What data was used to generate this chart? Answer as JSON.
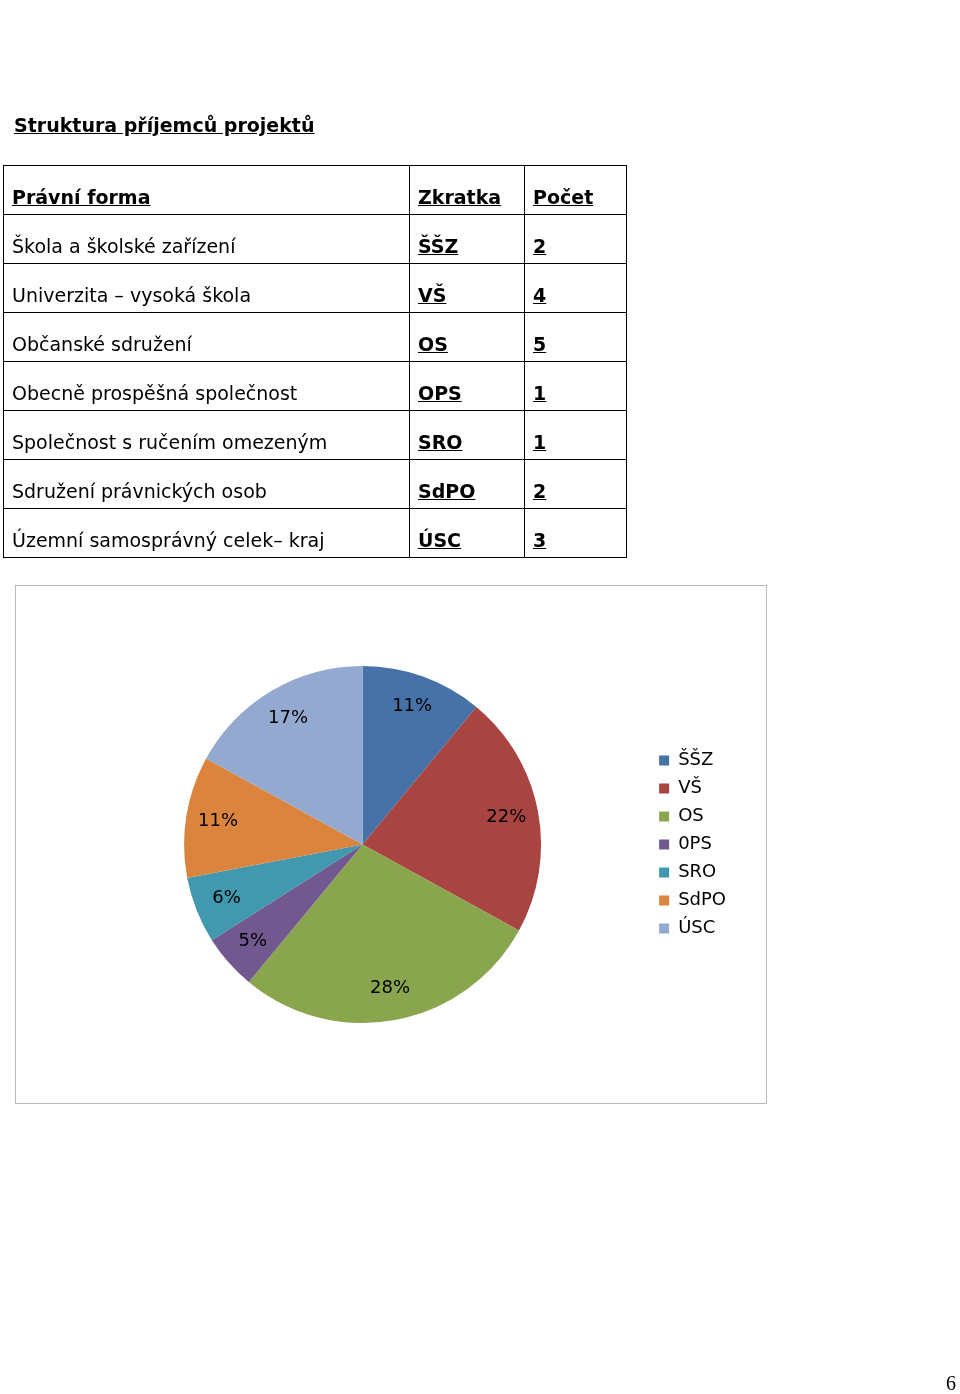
{
  "chart_data": {
    "type": "pie",
    "title": "Struktura příjemců projektů",
    "categories": [
      "ŠŠZ",
      "VŠ",
      "OS",
      "0PS",
      "SRO",
      "SdPO",
      "ÚSC"
    ],
    "values": [
      11,
      22,
      28,
      5,
      6,
      11,
      17
    ],
    "colors": [
      "#4672a8",
      "#a84542",
      "#89a54e",
      "#71588f",
      "#4198af",
      "#db843d",
      "#93a9cf"
    ],
    "value_labels": [
      "11%",
      "22%",
      "28%",
      "5%",
      "6%",
      "11%",
      "17%"
    ],
    "legend": "right",
    "annotations": [
      "Právní forma",
      "Zkratka",
      "Počet",
      "Škola a školské zařízení",
      "ŠŠZ",
      "2",
      "Univerzita – vysoká škola",
      "VŠ",
      "4",
      "Občanské sdružení",
      "OS",
      "5",
      " Obecně prospěšná společnost",
      "OPS",
      "1",
      "Společnost s ručením omezeným",
      "SRO",
      "1",
      "Sdružení právnických osob",
      "SdPO",
      "2",
      "Územní samosprávný celek– kraj",
      "ÚSC",
      "3",
      "6"
    ]
  }
}
